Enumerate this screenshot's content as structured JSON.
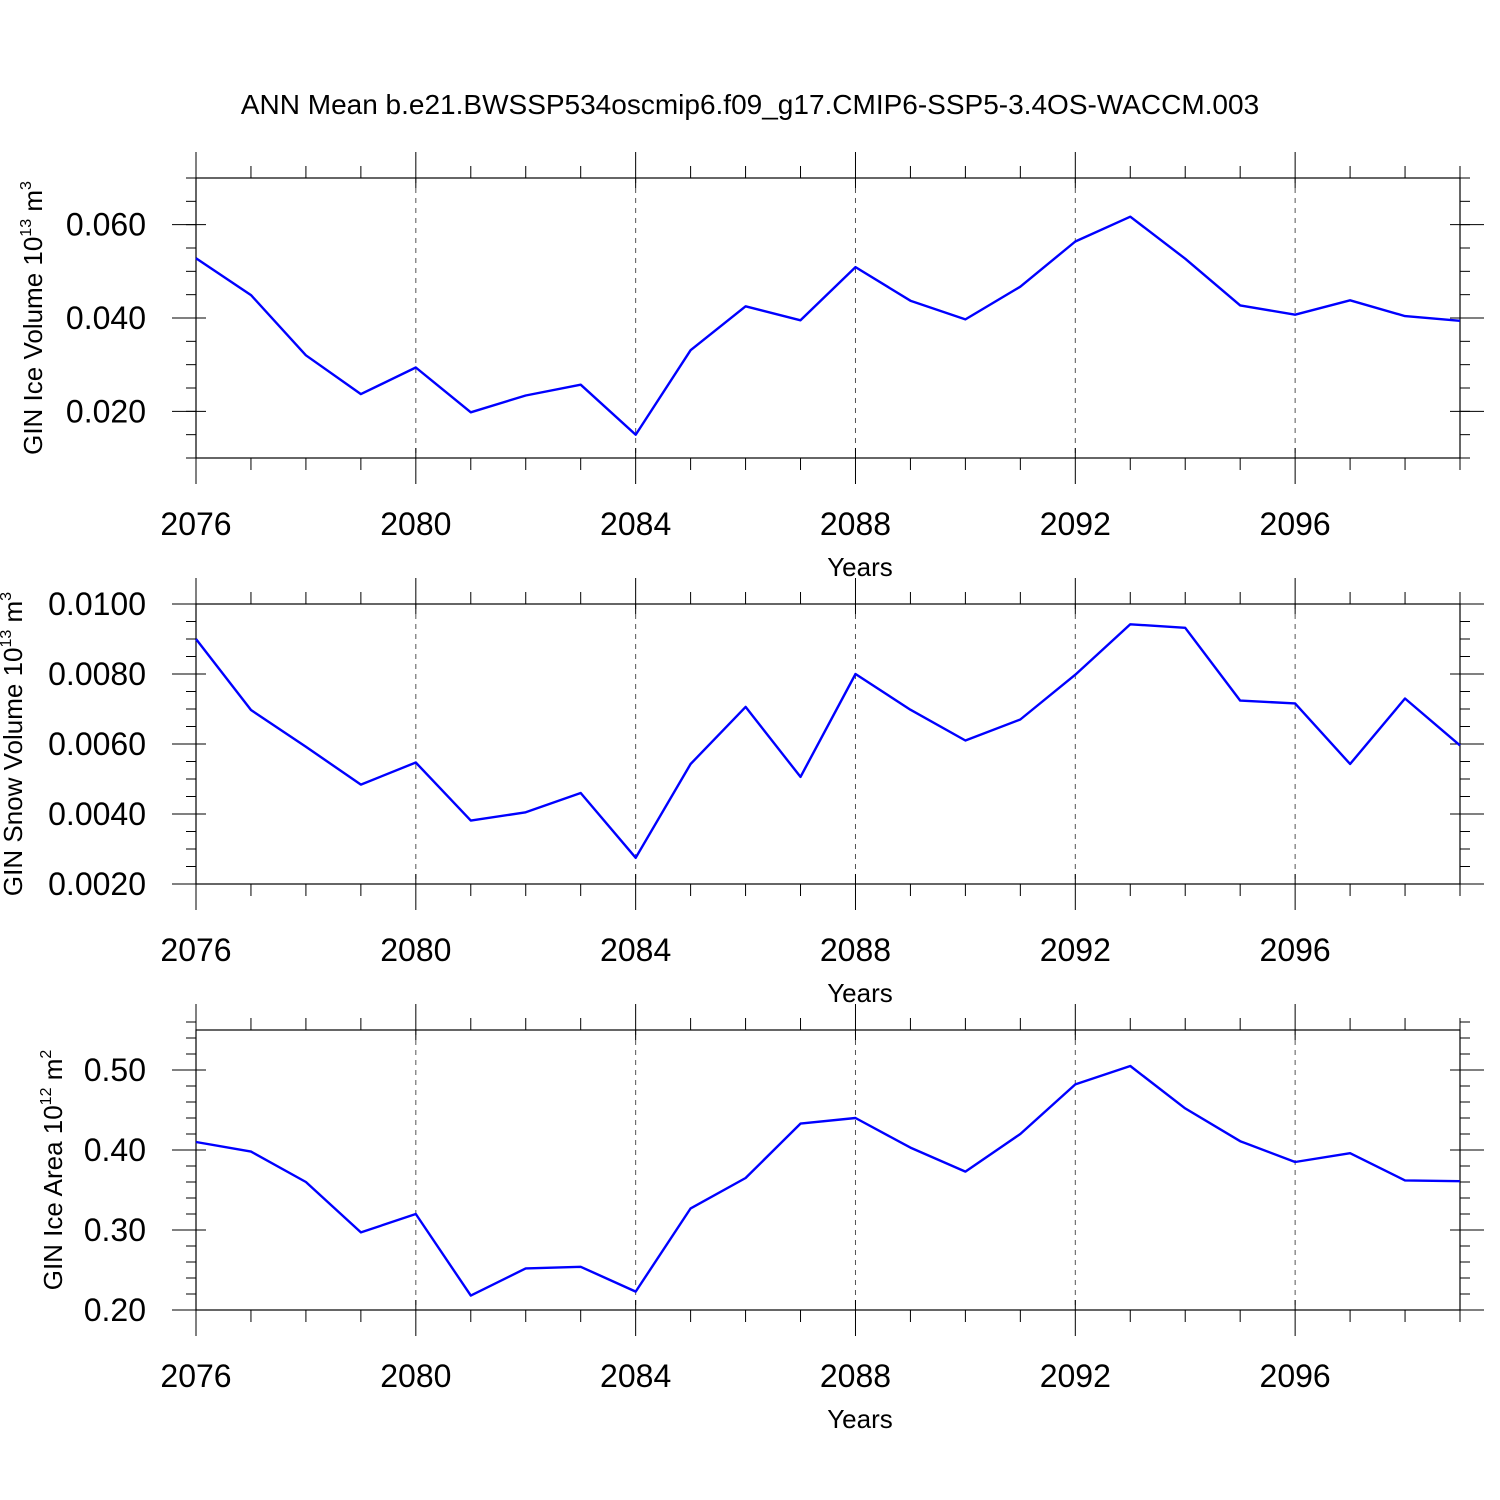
{
  "title": "ANN Mean b.e21.BWSSP534oscmip6.f09_g17.CMIP6-SSP5-3.4OS-WACCM.003",
  "chart_data": [
    {
      "type": "line",
      "title": "ANN Mean b.e21.BWSSP534oscmip6.f09_g17.CMIP6-SSP5-3.4OS-WACCM.003",
      "ylabel": "GIN Ice Volume 10",
      "ylabel_exp": "13",
      "ylabel_unit": " m",
      "ylabel_unit_exp": "3",
      "xlabel": "Years",
      "xlim": [
        2076,
        2099
      ],
      "ylim": [
        0.01,
        0.07
      ],
      "xticks": [
        2076,
        2080,
        2084,
        2088,
        2092,
        2096
      ],
      "xtick_labels": [
        "2076",
        "2080",
        "2084",
        "2088",
        "2092",
        "2096"
      ],
      "yticks": [
        0.02,
        0.04,
        0.06
      ],
      "ytick_labels": [
        "0.020",
        "0.040",
        "0.060"
      ],
      "ytick_minor_step": 0.005,
      "series": [
        {
          "name": "GIN Ice Volume",
          "color": "#0000ff",
          "x": [
            2076,
            2077,
            2078,
            2079,
            2080,
            2081,
            2082,
            2083,
            2084,
            2085,
            2086,
            2087,
            2088,
            2089,
            2090,
            2091,
            2092,
            2093,
            2094,
            2095,
            2096,
            2097,
            2098,
            2099
          ],
          "values": [
            0.0528,
            0.0449,
            0.032,
            0.0237,
            0.0294,
            0.0198,
            0.0234,
            0.0257,
            0.015,
            0.0331,
            0.0425,
            0.0395,
            0.0509,
            0.0437,
            0.0397,
            0.0467,
            0.0564,
            0.0617,
            0.0527,
            0.0427,
            0.0407,
            0.0438,
            0.0404,
            0.0394
          ]
        }
      ]
    },
    {
      "type": "line",
      "ylabel": "GIN Snow Volume 10",
      "ylabel_exp": "13",
      "ylabel_unit": " m",
      "ylabel_unit_exp": "3",
      "xlabel": "Years",
      "xlim": [
        2076,
        2099
      ],
      "ylim": [
        0.002,
        0.01
      ],
      "xticks": [
        2076,
        2080,
        2084,
        2088,
        2092,
        2096
      ],
      "xtick_labels": [
        "2076",
        "2080",
        "2084",
        "2088",
        "2092",
        "2096"
      ],
      "yticks": [
        0.002,
        0.004,
        0.006,
        0.008,
        0.01
      ],
      "ytick_labels": [
        "0.0020",
        "0.0040",
        "0.0060",
        "0.0080",
        "0.0100"
      ],
      "ytick_minor_step": 0.0005,
      "series": [
        {
          "name": "GIN Snow Volume",
          "color": "#0000ff",
          "x": [
            2076,
            2077,
            2078,
            2079,
            2080,
            2081,
            2082,
            2083,
            2084,
            2085,
            2086,
            2087,
            2088,
            2089,
            2090,
            2091,
            2092,
            2093,
            2094,
            2095,
            2096,
            2097,
            2098,
            2099
          ],
          "values": [
            0.009,
            0.00697,
            0.00592,
            0.00484,
            0.00547,
            0.00381,
            0.00405,
            0.0046,
            0.00275,
            0.00543,
            0.00706,
            0.00506,
            0.008,
            0.00698,
            0.0061,
            0.0067,
            0.00798,
            0.00942,
            0.00932,
            0.00724,
            0.00716,
            0.00543,
            0.0073,
            0.00596
          ]
        }
      ]
    },
    {
      "type": "line",
      "ylabel": "GIN Ice Area 10",
      "ylabel_exp": "12",
      "ylabel_unit": " m",
      "ylabel_unit_exp": "2",
      "xlabel": "Years",
      "xlim": [
        2076,
        2099
      ],
      "ylim": [
        0.2,
        0.55
      ],
      "xticks": [
        2076,
        2080,
        2084,
        2088,
        2092,
        2096
      ],
      "xtick_labels": [
        "2076",
        "2080",
        "2084",
        "2088",
        "2092",
        "2096"
      ],
      "yticks": [
        0.2,
        0.3,
        0.4,
        0.5
      ],
      "ytick_labels": [
        "0.20",
        "0.30",
        "0.40",
        "0.50"
      ],
      "ytick_minor_step": 0.02,
      "series": [
        {
          "name": "GIN Ice Area",
          "color": "#0000ff",
          "x": [
            2076,
            2077,
            2078,
            2079,
            2080,
            2081,
            2082,
            2083,
            2084,
            2085,
            2086,
            2087,
            2088,
            2089,
            2090,
            2091,
            2092,
            2093,
            2094,
            2095,
            2096,
            2097,
            2098,
            2099
          ],
          "values": [
            0.41,
            0.398,
            0.36,
            0.297,
            0.32,
            0.218,
            0.252,
            0.254,
            0.223,
            0.327,
            0.365,
            0.433,
            0.44,
            0.403,
            0.373,
            0.42,
            0.482,
            0.505,
            0.452,
            0.411,
            0.385,
            0.396,
            0.362,
            0.361
          ]
        }
      ]
    }
  ]
}
